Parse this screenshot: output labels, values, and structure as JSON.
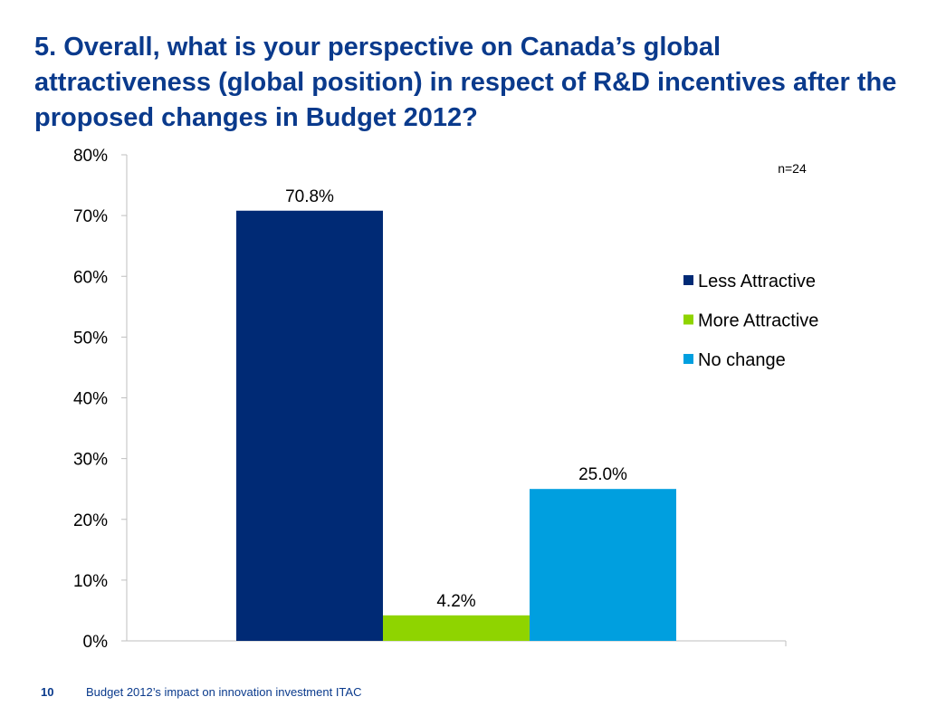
{
  "slide": {
    "title": "5. Overall, what is your perspective on Canada’s global attractiveness (global position) in respect of R&D incentives after the proposed changes in Budget 2012?",
    "page_number": "10",
    "footer": "Budget 2012’s impact on innovation investment ITAC"
  },
  "chart_data": {
    "type": "bar",
    "title": "",
    "xlabel": "",
    "ylabel": "",
    "annotation": "n=24",
    "ylim": [
      0,
      80
    ],
    "yticks": [
      "0%",
      "10%",
      "20%",
      "30%",
      "40%",
      "50%",
      "60%",
      "70%",
      "80%"
    ],
    "grid": false,
    "legend_position": "right",
    "series": [
      {
        "name": "Less Attractive",
        "value": 70.8,
        "label": "70.8%",
        "color": "#002a75"
      },
      {
        "name": "More Attractive",
        "value": 4.2,
        "label": "4.2%",
        "color": "#8fd400"
      },
      {
        "name": "No change",
        "value": 25.0,
        "label": "25.0%",
        "color": "#009fdf"
      }
    ]
  }
}
